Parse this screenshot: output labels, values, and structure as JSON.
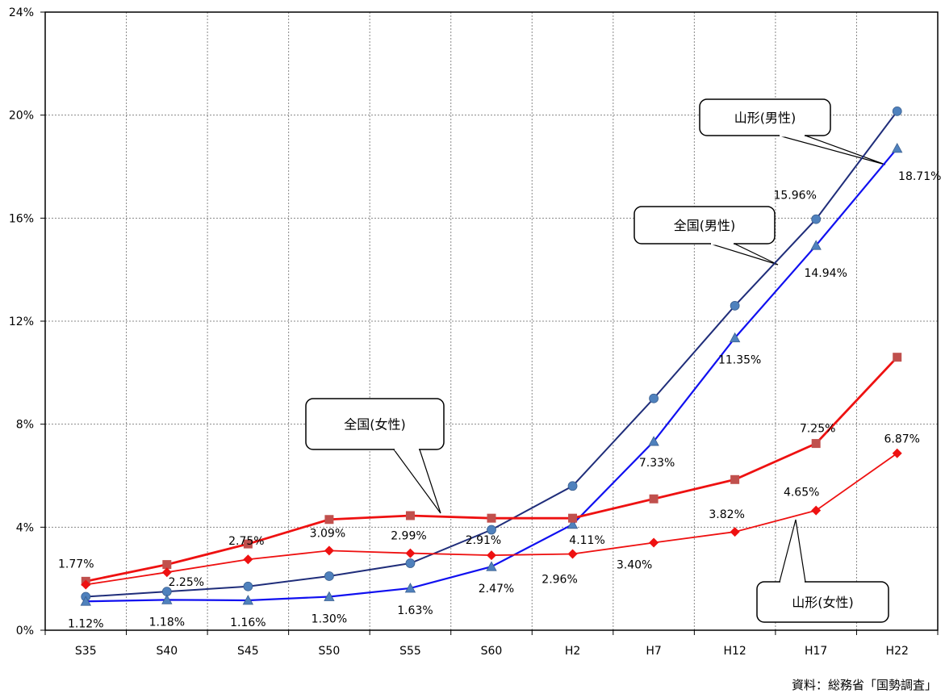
{
  "chart_data": {
    "type": "line",
    "categories": [
      "S35",
      "S40",
      "S45",
      "S50",
      "S55",
      "S60",
      "H2",
      "H7",
      "H12",
      "H17",
      "H22"
    ],
    "ylim": [
      0,
      24
    ],
    "yticks": [
      0,
      4,
      8,
      12,
      16,
      20,
      24
    ],
    "ytick_labels": [
      "0%",
      "4%",
      "8%",
      "12%",
      "16%",
      "20%",
      "24%"
    ],
    "grid": true,
    "series": [
      {
        "name": "山形(男性)",
        "color": "#1f2d7a",
        "marker": "circle",
        "marker_color": "#4f81bd",
        "values": [
          1.3,
          1.5,
          1.7,
          2.1,
          2.6,
          3.9,
          5.6,
          9.0,
          12.6,
          15.96,
          20.15
        ],
        "labels": [
          null,
          null,
          null,
          null,
          null,
          null,
          null,
          null,
          null,
          "15.96%",
          null
        ]
      },
      {
        "name": "全国(男性)",
        "color": "#1010f0",
        "marker": "triangle",
        "marker_color": "#4f81bd",
        "values": [
          1.12,
          1.18,
          1.16,
          1.3,
          1.63,
          2.47,
          4.11,
          7.33,
          11.35,
          14.94,
          18.71
        ],
        "labels": [
          "1.12%",
          "1.18%",
          "1.16%",
          "1.30%",
          "1.63%",
          "2.47%",
          "4.11%",
          "7.33%",
          "11.35%",
          "14.94%",
          "18.71%"
        ]
      },
      {
        "name": "全国(女性)",
        "color": "#ee1111",
        "marker": "square",
        "marker_color": "#c0504d",
        "values": [
          1.9,
          2.55,
          3.35,
          4.3,
          4.45,
          4.35,
          4.35,
          5.1,
          5.85,
          7.25,
          10.6
        ],
        "labels": [
          null,
          null,
          null,
          null,
          null,
          null,
          null,
          null,
          null,
          "7.25%",
          null
        ]
      },
      {
        "name": "山形(女性)",
        "color": "#ee1111",
        "marker": "diamond",
        "marker_color": "#ee1111",
        "values": [
          1.77,
          2.25,
          2.75,
          3.09,
          2.99,
          2.91,
          2.96,
          3.4,
          3.82,
          4.65,
          6.87
        ],
        "labels": [
          "1.77%",
          "2.25%",
          "2.75%",
          "3.09%",
          "2.99%",
          "2.91%",
          "2.96%",
          "3.40%",
          "3.82%",
          "4.65%",
          "6.87%"
        ]
      }
    ],
    "callouts": [
      "山形(男性)",
      "全国(男性)",
      "全国(女性)",
      "山形(女性)"
    ]
  },
  "source_note": "資料：総務省「国勢調査」"
}
